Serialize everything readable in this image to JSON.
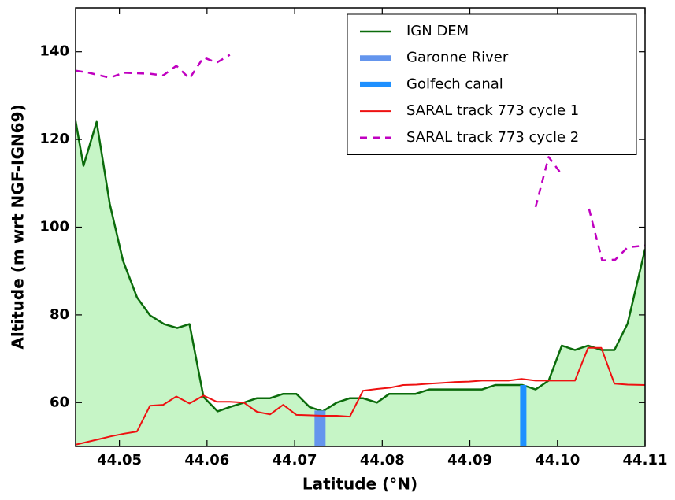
{
  "chart_data": {
    "type": "line",
    "xlabel": "Latitude (°N)",
    "ylabel": "Altitude (m wrt NGF-IGN69)",
    "xlim": [
      44.045,
      44.11
    ],
    "ylim": [
      50,
      150
    ],
    "xticks": [
      44.05,
      44.06,
      44.07,
      44.08,
      44.09,
      {
        "value": 44.1,
        "label": "44.10"
      },
      44.11
    ],
    "yticks": [
      60,
      80,
      100,
      120,
      140
    ],
    "legend": "upper right",
    "series": [
      {
        "name": "IGN DEM",
        "color": "#0b6b0b",
        "fill_color": "#c6f5c6",
        "style": "solid",
        "linewidth": 2.5,
        "x": [
          44.045,
          44.0459,
          44.0474,
          44.0489,
          44.0504,
          44.052,
          44.0535,
          44.0551,
          44.0566,
          44.058,
          44.0596,
          44.0612,
          44.0626,
          44.0642,
          44.0657,
          44.0672,
          44.0687,
          44.0702,
          44.0717,
          44.0732,
          44.0748,
          44.0763,
          44.0778,
          44.0794,
          44.0808,
          44.0823,
          44.0838,
          44.0854,
          44.0869,
          44.0884,
          44.09,
          44.0914,
          44.0929,
          44.0945,
          44.096,
          44.0975,
          44.099,
          44.1005,
          44.102,
          44.1035,
          44.105,
          44.1065,
          44.108,
          44.11
        ],
        "values": [
          124.2,
          114,
          124,
          105.3,
          92.4,
          84,
          79.9,
          77.9,
          77,
          77.9,
          61.3,
          58,
          59,
          60,
          61,
          61,
          62,
          62,
          59,
          58,
          60,
          61,
          61,
          60,
          62,
          62,
          62,
          63,
          63,
          63,
          63,
          63,
          64,
          64,
          64,
          63,
          65,
          73,
          72,
          73,
          72,
          72,
          78,
          95
        ]
      },
      {
        "name": "Garonne River",
        "color": "#6495ed",
        "style": "vbar",
        "linewidth": 14,
        "x": [
          44.0729
        ],
        "values": [
          58.2
        ]
      },
      {
        "name": "Golfech canal",
        "color": "#1e90ff",
        "style": "vbar",
        "linewidth": 8,
        "x": [
          44.0961
        ],
        "values": [
          64
        ]
      },
      {
        "name": "SARAL track 773 cycle 1",
        "color": "#ee1111",
        "style": "solid",
        "linewidth": 2,
        "x": [
          44.045,
          44.049,
          44.0505,
          44.052,
          44.0535,
          44.055,
          44.0565,
          44.058,
          44.0596,
          44.0611,
          44.0626,
          44.0642,
          44.0657,
          44.0672,
          44.0687,
          44.0702,
          44.0732,
          44.0748,
          44.0763,
          44.0778,
          44.0794,
          44.0809,
          44.0824,
          44.0839,
          44.0854,
          44.0869,
          44.0884,
          44.0899,
          44.0914,
          44.0929,
          44.0944,
          44.0959,
          44.0975,
          44.099,
          44.1005,
          44.102,
          44.1035,
          44.105,
          44.1065,
          44.108,
          44.11
        ],
        "values": [
          50.4,
          52.3,
          52.9,
          53.4,
          59.3,
          59.5,
          61.4,
          59.8,
          61.6,
          60.2,
          60.2,
          60,
          57.9,
          57.3,
          59.5,
          57.2,
          57,
          57,
          56.8,
          62.7,
          63.1,
          63.4,
          64,
          64.1,
          64.3,
          64.5,
          64.7,
          64.8,
          65,
          65,
          65,
          65.4,
          65,
          65,
          65,
          65,
          72.5,
          72.5,
          64.3,
          64.1,
          64
        ]
      },
      {
        "name": "SARAL track 773 cycle 2",
        "color": "#c000c0",
        "style": "dashed",
        "linewidth": 2.5,
        "x": [
          44.045,
          44.0465,
          44.0489,
          44.0505,
          44.0535,
          44.055,
          44.0565,
          44.058,
          44.0596,
          44.0611,
          44.0626,
          44.0642,
          44.0975,
          44.099,
          44.1006,
          44.102,
          44.1036,
          44.1051,
          44.1066,
          44.108,
          44.11
        ],
        "values": [
          135.7,
          135.2,
          134.1,
          135.2,
          135,
          134.6,
          136.8,
          133.9,
          138.7,
          137.5,
          139.3,
          null,
          104.6,
          116,
          111.7,
          null,
          104.2,
          92.4,
          92.6,
          95.4,
          95.8
        ]
      }
    ]
  }
}
